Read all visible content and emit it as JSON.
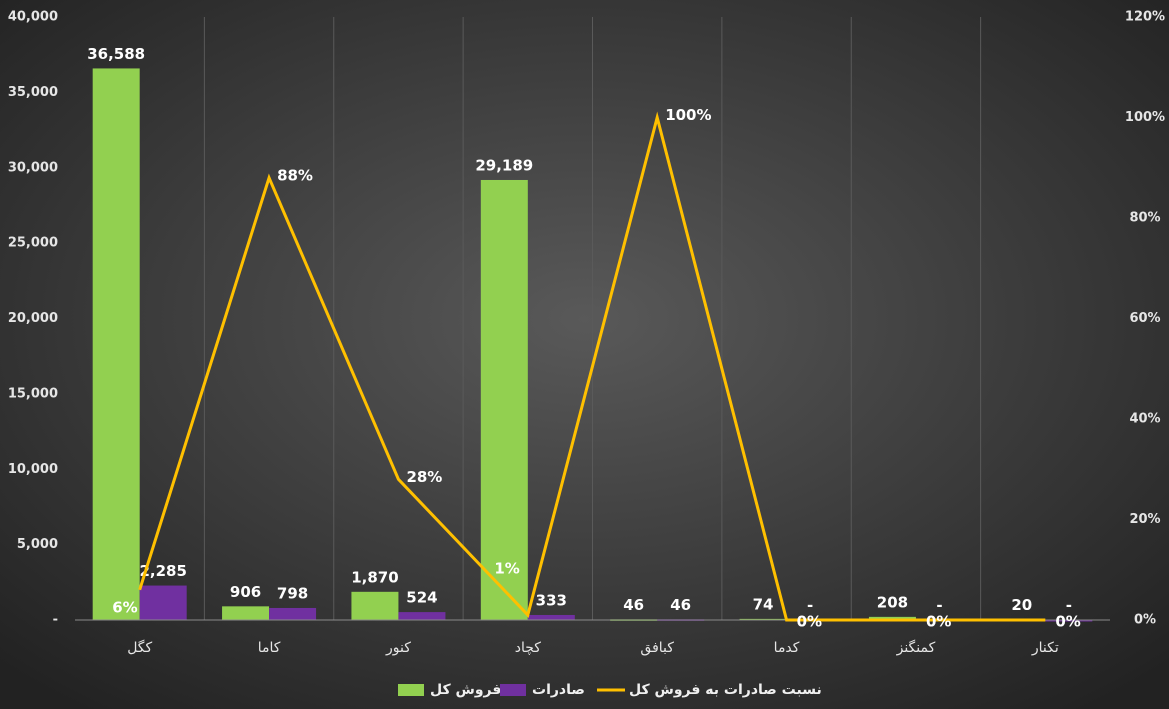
{
  "chart_data": {
    "type": "bar-line",
    "categories": [
      "کگل",
      "کاما",
      "کنور",
      "کچاد",
      "کبافق",
      "کدما",
      "کمنگنز",
      "تکنار"
    ],
    "series": [
      {
        "name": "فروش کل",
        "color": "#92d050",
        "type": "bar",
        "values": [
          36588,
          906,
          1870,
          29189,
          46,
          74,
          208,
          20
        ],
        "value_labels": [
          "36,588",
          "906",
          "1,870",
          "29,189",
          "46",
          "74",
          "208",
          "20"
        ]
      },
      {
        "name": "صادرات",
        "color": "#7030a0",
        "type": "bar",
        "values": [
          2285,
          798,
          524,
          333,
          46,
          0,
          0,
          0
        ],
        "value_labels": [
          "2,285",
          "798",
          "524",
          "333",
          "46",
          "-",
          "-",
          "-"
        ]
      },
      {
        "name": "نسبت صادرات به فروش کل",
        "color": "#ffc000",
        "type": "line",
        "axis": "y2",
        "values": [
          6,
          88,
          28,
          1,
          100,
          0,
          0,
          0
        ],
        "value_labels": [
          "6%",
          "88%",
          "28%",
          "1%",
          "100%",
          "0%",
          "0%",
          "0%"
        ]
      }
    ],
    "ylim": [
      0,
      40000
    ],
    "yticks": [
      {
        "value": 0,
        "label": "-"
      },
      {
        "value": 5000,
        "label": "5,000"
      },
      {
        "value": 10000,
        "label": "10,000"
      },
      {
        "value": 15000,
        "label": "15,000"
      },
      {
        "value": 20000,
        "label": "20,000"
      },
      {
        "value": 25000,
        "label": "25,000"
      },
      {
        "value": 30000,
        "label": "30,000"
      },
      {
        "value": 35000,
        "label": "35,000"
      },
      {
        "value": 40000,
        "label": "40,000"
      }
    ],
    "y2lim": [
      0,
      120
    ],
    "y2ticks": [
      {
        "value": 0,
        "label": "0%"
      },
      {
        "value": 20,
        "label": "20%"
      },
      {
        "value": 40,
        "label": "40%"
      },
      {
        "value": 60,
        "label": "60%"
      },
      {
        "value": 80,
        "label": "80%"
      },
      {
        "value": 100,
        "label": "100%"
      },
      {
        "value": 120,
        "label": "120%"
      }
    ],
    "legend": "bottom"
  }
}
